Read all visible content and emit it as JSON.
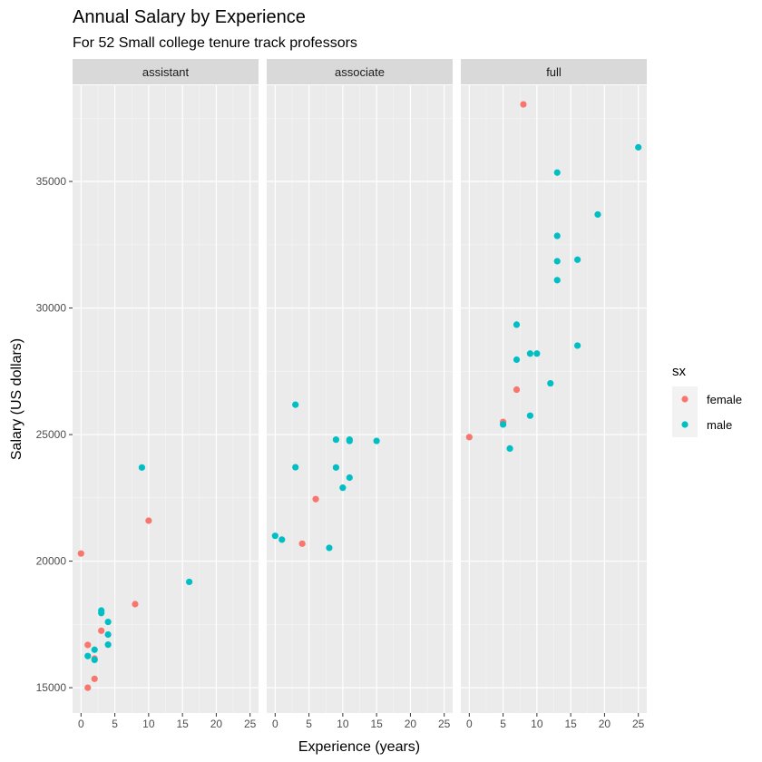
{
  "chart_data": {
    "type": "scatter",
    "title": "Annual Salary by Experience",
    "subtitle": "For 52 Small college tenure track professors",
    "xlabel": "Experience (years)",
    "ylabel": "Salary (US dollars)",
    "xlim": [
      -1.25,
      26.25
    ],
    "ylim": [
      14000,
      38800
    ],
    "x_ticks": [
      0,
      5,
      10,
      15,
      20,
      25
    ],
    "y_ticks": [
      15000,
      20000,
      25000,
      30000,
      35000
    ],
    "grid": true,
    "legend": {
      "title": "sx",
      "position": "right",
      "entries": [
        {
          "name": "female",
          "color": "#F8766D"
        },
        {
          "name": "male",
          "color": "#00BFC4"
        }
      ]
    },
    "facets": [
      {
        "label": "assistant",
        "series": [
          {
            "name": "female",
            "points": [
              [
                0,
                20300
              ],
              [
                1,
                16690
              ],
              [
                1,
                15000
              ],
              [
                2,
                16150
              ],
              [
                2,
                15350
              ],
              [
                3,
                17250
              ],
              [
                8,
                18300
              ],
              [
                10,
                21600
              ]
            ]
          },
          {
            "name": "male",
            "points": [
              [
                1,
                16250
              ],
              [
                2,
                16500
              ],
              [
                2,
                16100
              ],
              [
                3,
                18050
              ],
              [
                3,
                17950
              ],
              [
                4,
                17600
              ],
              [
                4,
                17100
              ],
              [
                4,
                16700
              ],
              [
                9,
                23700
              ],
              [
                16,
                19180
              ]
            ]
          }
        ]
      },
      {
        "label": "associate",
        "series": [
          {
            "name": "female",
            "points": [
              [
                4,
                20690
              ],
              [
                6,
                22450
              ]
            ]
          },
          {
            "name": "male",
            "points": [
              [
                0,
                21000
              ],
              [
                1,
                20850
              ],
              [
                3,
                26180
              ],
              [
                3,
                23710
              ],
              [
                8,
                20525
              ],
              [
                9,
                24800
              ],
              [
                9,
                23700
              ],
              [
                10,
                22900
              ],
              [
                11,
                24750
              ],
              [
                11,
                24800
              ],
              [
                11,
                23300
              ],
              [
                15,
                24750
              ]
            ]
          }
        ]
      },
      {
        "label": "full",
        "series": [
          {
            "name": "female",
            "points": [
              [
                0,
                24900
              ],
              [
                5,
                25500
              ],
              [
                7,
                26775
              ],
              [
                8,
                38045
              ]
            ]
          },
          {
            "name": "male",
            "points": [
              [
                5,
                25400
              ],
              [
                6,
                24450
              ],
              [
                7,
                29342
              ],
              [
                7,
                27959
              ],
              [
                9,
                28200
              ],
              [
                9,
                25748
              ],
              [
                10,
                28200
              ],
              [
                12,
                27025
              ],
              [
                13,
                35350
              ],
              [
                13,
                32850
              ],
              [
                13,
                31850
              ],
              [
                13,
                31100
              ],
              [
                16,
                31909
              ],
              [
                16,
                28516
              ],
              [
                19,
                33696
              ],
              [
                25,
                36350
              ]
            ]
          }
        ]
      }
    ]
  }
}
